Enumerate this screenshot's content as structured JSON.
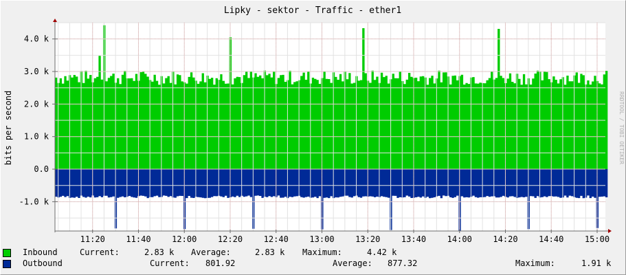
{
  "chart_data": {
    "type": "area",
    "title": "Lipky - sektor - Traffic - ether1",
    "ylabel": "bits per second",
    "watermark": "RRDTOOL / TOBI OETIKER",
    "y_ticks": [
      {
        "v": 4000,
        "label": "4.0 k"
      },
      {
        "v": 3000,
        "label": "3.0 k"
      },
      {
        "v": 2000,
        "label": "2.0 k"
      },
      {
        "v": 1000,
        "label": "1.0 k"
      },
      {
        "v": 0,
        "label": "0.0"
      },
      {
        "v": -1000,
        "label": "-1.0 k"
      }
    ],
    "ylim": [
      -1900,
      4500
    ],
    "x_ticks": [
      "11:20",
      "11:40",
      "12:00",
      "12:20",
      "12:40",
      "13:00",
      "13:20",
      "13:40",
      "14:00",
      "14:20",
      "14:40",
      "15:00"
    ],
    "xlim_minutes": [
      11.06,
      15.06
    ],
    "x_tick_start_hours": 11.333,
    "series": [
      {
        "name": "Inbound",
        "color": "#00cc00",
        "base_value": 2750,
        "spikes": [
          {
            "t": "11:25",
            "value": 4420
          },
          {
            "t": "12:20",
            "value": 4050
          },
          {
            "t": "13:18",
            "value": 4330
          },
          {
            "t": "14:17",
            "value": 4310
          },
          {
            "t": "11:23",
            "value": 3480
          }
        ]
      },
      {
        "name": "Outbound",
        "color": "#002a97",
        "base_value": -850,
        "spikes": [
          {
            "t": "11:30",
            "value": -1820
          },
          {
            "t": "12:00",
            "value": -1840
          },
          {
            "t": "12:30",
            "value": -1830
          },
          {
            "t": "13:00",
            "value": -1850
          },
          {
            "t": "13:30",
            "value": -1870
          },
          {
            "t": "14:00",
            "value": -1910
          },
          {
            "t": "14:30",
            "value": -1840
          },
          {
            "t": "15:00",
            "value": -1810
          }
        ]
      }
    ]
  },
  "legend": {
    "inbound": {
      "name": "Inbound",
      "current_label": "Current:",
      "current": "2.83 k",
      "average_label": "Average:",
      "average": "2.83 k",
      "maximum_label": "Maximum:",
      "maximum": "4.42 k",
      "color": "#00cc00"
    },
    "outbound": {
      "name": "Outbound",
      "current_label": "Current:",
      "current": "801.92",
      "average_label": "Average:",
      "average": "877.32",
      "maximum_label": "Maximum:",
      "maximum": "1.91 k",
      "color": "#002a97"
    }
  }
}
